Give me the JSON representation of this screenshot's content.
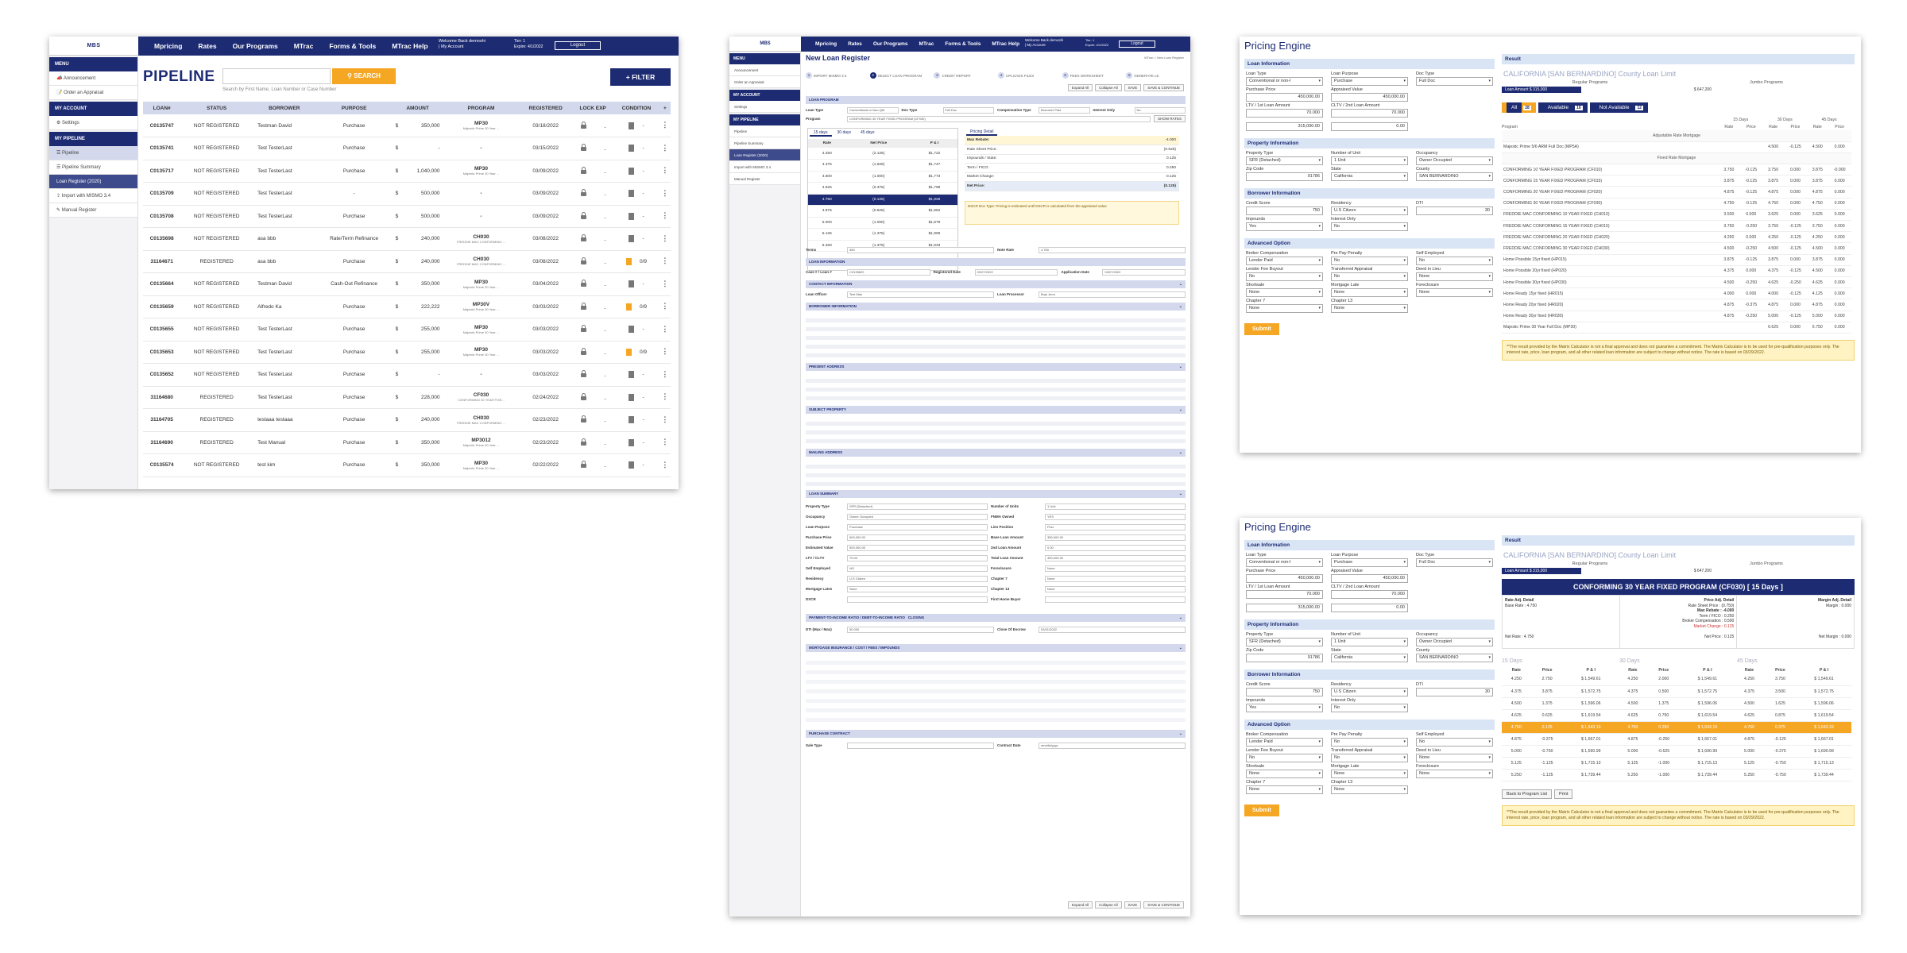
{
  "nav": {
    "logo": "MBS",
    "logo_sub": "Prestige Mortgage Bankers",
    "items": [
      "Mpricing",
      "Rates",
      "Our Programs",
      "MTrac",
      "Forms & Tools",
      "MTrac Help"
    ],
    "welcome": "Welcome Back demoshi",
    "my_account": "| My Account",
    "tier": "Tier: 1",
    "expire": "Expire: 4/1/2022",
    "logout": "Logout"
  },
  "sidebar": {
    "menu": "MENU",
    "announcement": "Announcement",
    "order_appraisal": "Order an Appraisal",
    "my_account": "MY ACCOUNT",
    "settings": "Settings",
    "my_pipeline": "MY PIPELINE",
    "pipeline": "Pipeline",
    "pipeline_summary": "Pipeline Summary",
    "loan_register": "Loan Register (2020)",
    "import": "Import with MISMO 3.4",
    "manual_register": "Manual Register"
  },
  "pipeline": {
    "title": "PIPELINE",
    "search_button": "SEARCH",
    "search_hint": "Search by First Name, Loan Number or Case Number",
    "filter_button": "FILTER",
    "columns": [
      "LOAN#",
      "STATUS",
      "BORROWER",
      "PURPOSE",
      "AMOUNT",
      "PROGRAM",
      "REGISTERED",
      "LOCK EXP",
      "CONDITION",
      "+"
    ],
    "rows": [
      {
        "loan": "C0135747",
        "status": "NOT REGISTERED",
        "borrower": "Testman David",
        "purpose": "Purchase",
        "cur": "$",
        "amount": "350,000",
        "program": "MP30",
        "sub": "Majestic Prime 30 Year ...",
        "registered": "03/18/2022",
        "lockexp": "-",
        "cond": "-"
      },
      {
        "loan": "C0135741",
        "status": "NOT REGISTERED",
        "borrower": "Test TesterLast",
        "purpose": "Purchase",
        "cur": "$",
        "amount": "-",
        "program": "-",
        "sub": "",
        "registered": "03/15/2022",
        "lockexp": "-",
        "cond": "-"
      },
      {
        "loan": "C0135717",
        "status": "NOT REGISTERED",
        "borrower": "Test TesterLast",
        "purpose": "Purchase",
        "cur": "$",
        "amount": "1,040,000",
        "program": "MP30",
        "sub": "Majestic Prime 30 Year ...",
        "registered": "03/09/2022",
        "lockexp": "-",
        "cond": "-"
      },
      {
        "loan": "C0135709",
        "status": "NOT REGISTERED",
        "borrower": "Test TesterLast",
        "purpose": "-",
        "cur": "$",
        "amount": "500,000",
        "program": "-",
        "sub": "",
        "registered": "03/09/2022",
        "lockexp": "-",
        "cond": "-"
      },
      {
        "loan": "C0135708",
        "status": "NOT REGISTERED",
        "borrower": "Test TesterLast",
        "purpose": "Purchase",
        "cur": "$",
        "amount": "500,000",
        "program": "-",
        "sub": "",
        "registered": "03/09/2022",
        "lockexp": "-",
        "cond": "-"
      },
      {
        "loan": "C0135698",
        "status": "NOT REGISTERED",
        "borrower": "asa bbb",
        "purpose": "Rate/Term Refinance",
        "cur": "$",
        "amount": "240,000",
        "program": "CH030",
        "sub": "FREDDIE MAC CONFORMING ...",
        "registered": "03/08/2022",
        "lockexp": "-",
        "cond": "-"
      },
      {
        "loan": "31164671",
        "status": "REGISTERED",
        "borrower": "asa bbb",
        "purpose": "Purchase",
        "cur": "$",
        "amount": "240,000",
        "program": "CH030",
        "sub": "FREDDIE MAC CONFORMING ...",
        "registered": "03/08/2022",
        "lockexp": "-",
        "cond": "0/9"
      },
      {
        "loan": "C0135664",
        "status": "NOT REGISTERED",
        "borrower": "Testman David",
        "purpose": "Cash-Out Refinance",
        "cur": "$",
        "amount": "350,000",
        "program": "MP30",
        "sub": "Majestic Prime 30 Year ...",
        "registered": "03/04/2022",
        "lockexp": "-",
        "cond": "-"
      },
      {
        "loan": "C0135659",
        "status": "NOT REGISTERED",
        "borrower": "Alfredo Ka",
        "purpose": "Purchase",
        "cur": "$",
        "amount": "222,222",
        "program": "MP30V",
        "sub": "Majestic Prime 30 Year ...",
        "registered": "03/03/2022",
        "lockexp": "-",
        "cond": "0/9"
      },
      {
        "loan": "C0135655",
        "status": "NOT REGISTERED",
        "borrower": "Test TesterLast",
        "purpose": "Purchase",
        "cur": "$",
        "amount": "255,000",
        "program": "MP30",
        "sub": "Majestic Prime 30 Year ...",
        "registered": "03/03/2022",
        "lockexp": "-",
        "cond": "-"
      },
      {
        "loan": "C0135653",
        "status": "NOT REGISTERED",
        "borrower": "Test TesterLast",
        "purpose": "Purchase",
        "cur": "$",
        "amount": "255,000",
        "program": "MP30",
        "sub": "Majestic Prime 30 Year ...",
        "registered": "03/03/2022",
        "lockexp": "-",
        "cond": "0/9"
      },
      {
        "loan": "C0135652",
        "status": "NOT REGISTERED",
        "borrower": "Test TesterLast",
        "purpose": "Purchase",
        "cur": "$",
        "amount": "-",
        "program": "-",
        "sub": "",
        "registered": "03/03/2022",
        "lockexp": "-",
        "cond": "-"
      },
      {
        "loan": "31164680",
        "status": "REGISTERED",
        "borrower": "Test TesterLast",
        "purpose": "Purchase",
        "cur": "$",
        "amount": "228,000",
        "program": "CF030",
        "sub": "CONFORMING 30 YEAR FIXE...",
        "registered": "02/24/2022",
        "lockexp": "-",
        "cond": "-"
      },
      {
        "loan": "31164705",
        "status": "REGISTERED",
        "borrower": "testaaa testaaa",
        "purpose": "Purchase",
        "cur": "$",
        "amount": "240,000",
        "program": "CH030",
        "sub": "FREDDIE MAC CONFORMING ...",
        "registered": "02/23/2022",
        "lockexp": "-",
        "cond": "-"
      },
      {
        "loan": "31164690",
        "status": "REGISTERED",
        "borrower": "Test Manual",
        "purpose": "Purchase",
        "cur": "$",
        "amount": "350,000",
        "program": "MP3012",
        "sub": "Majestic Prime 30 Year ...",
        "registered": "02/23/2022",
        "lockexp": "-",
        "cond": "-"
      },
      {
        "loan": "C0135574",
        "status": "NOT REGISTERED",
        "borrower": "test kim",
        "purpose": "Purchase",
        "cur": "$",
        "amount": "350,000",
        "program": "MP30",
        "sub": "Majestic Prime 30 Year ...",
        "registered": "02/22/2022",
        "lockexp": "-",
        "cond": "-"
      }
    ]
  },
  "loan_register": {
    "title": "New Loan Register",
    "breadcrumb": "MTrac > New Loan Register",
    "steps": [
      "IMPORT MISMO 3.4",
      "SELECT LOAN PROGRAM",
      "CREDIT REPORT",
      "UPLOADS FILES",
      "FEES WORKSHEET",
      "GENERATE LE"
    ],
    "toolbar": [
      "Expand All",
      "Collapse All",
      "SAVE",
      "SAVE & CONTINUE"
    ],
    "sections": [
      "LOAN PROGRAM",
      "LOAN INFORMATION",
      "CONTACT INFORMATION",
      "BORROWER INFORMATION",
      "PRESENT ADDRESS",
      "SUBJECT PROPERTY",
      "MAILING ADDRESS",
      "LOAN SUMMARY",
      "PAYMENT-TO-INCOME RATIO / DEBT-TO-INCOME RATIO",
      "CLOSING",
      "MORTGAGE INSURANCE / COST / FEES / IMPOUNDS",
      "PURCHASE CONTRACT"
    ],
    "loan_type_label": "Loan Type",
    "loan_type": "Conventional or Non-QM",
    "doc_type_label": "Doc Type",
    "doc_type": "Full Doc",
    "comp_label": "Compensation Type",
    "comp": "Borrower Paid",
    "io_label": "Interest Only",
    "io": "No",
    "program_label": "Program",
    "program": "CONFORMING 30 YEAR FIXED PROGRAM (CF030)",
    "show_rates": "SHOW RATES",
    "rate_tabs": [
      "15 days",
      "30 days",
      "45 days"
    ],
    "rate_cols": [
      "Rate",
      "Net Price",
      "P & I"
    ],
    "rates": [
      [
        "4.250",
        "(2.125)",
        "$1,722"
      ],
      [
        "4.375",
        "(1.625)",
        "$1,747"
      ],
      [
        "4.500",
        "(1.000)",
        "$1,773"
      ],
      [
        "4.625",
        "(0.375)",
        "$1,799"
      ],
      [
        "4.750",
        "(0.125)",
        "$1,826"
      ],
      [
        "4.875",
        "(0.625)",
        "$1,852"
      ],
      [
        "5.000",
        "(1.000)",
        "$1,879"
      ],
      [
        "5.125",
        "(1.375)",
        "$1,906"
      ],
      [
        "5.250",
        "(1.375)",
        "$1,933"
      ]
    ],
    "pricing_tab": "Pricing Detail",
    "details": [
      [
        "Max Rebate:",
        "-4.000"
      ],
      [
        "Rate Sheet Price:",
        "(0.625)"
      ],
      [
        "Impounds / State:",
        "0.125"
      ],
      [
        "Term / FICO:",
        "0.250"
      ],
      [
        "Market Change:",
        "0.125"
      ],
      [
        "Net Price:",
        "(0.125)"
      ]
    ],
    "dscr": "DSCR Doc Type: Pricing is estimated until DSCR is calculated from the appraised value",
    "terms_label": "Terms",
    "terms": "360",
    "note_rate_label": "Note Rate",
    "note_rate": "4.750",
    "loan_info": [
      [
        "Case # / Loan #",
        "C0135822"
      ],
      [
        "Registered Date",
        "03/27/2022"
      ],
      [
        "Application Date",
        "03/27/2022"
      ]
    ],
    "loan_officer": "Loan Officer",
    "loan_officer_val": "Test Man",
    "loan_processor": "Loan Processor",
    "loan_processor_val": "Bujo Jeon",
    "summary_rows": [
      [
        "Property Type",
        "SFR (Detached)",
        "Number of Units",
        "1 Unit"
      ],
      [
        "Occupancy",
        "Owner Occupied",
        "FNMA Owned",
        "YES"
      ],
      [
        "Loan Purpose",
        "Purchase",
        "Lien Position",
        "First"
      ],
      [
        "Purchase Price",
        "500,000.00",
        "Base Loan Amount",
        "350,000.00"
      ],
      [
        "Estimated Value",
        "500,000.00",
        "2nd Loan Amount",
        "0.00"
      ],
      [
        "LTV / CLTV",
        "70.00",
        "Total Loan Amount",
        "350,000.00"
      ],
      [
        "Self Employed",
        "NO",
        "Foreclosure",
        "None"
      ],
      [
        "Residency",
        "U.S Citizen",
        "Chapter 7",
        "None"
      ],
      [
        "Mortgage Lates",
        "None",
        "Chapter 13",
        "None"
      ],
      [
        "DSCR",
        "",
        "First Home Buyer",
        ""
      ]
    ],
    "dti_label": "DTI (Max / Max)",
    "dti": "50.000",
    "close_escrow_label": "Close Of Escrow",
    "close_escrow": "03/31/2022",
    "sale_type_label": "Sale Type",
    "contract_label": "Contract Date",
    "contract": "mm/dd/yyyy"
  },
  "pricing": {
    "title": "Pricing Engine",
    "loan_info": "Loan Information",
    "loan_type_label": "Loan Type",
    "loan_type": "Conventional or non-I",
    "loan_purpose_label": "Loan Purpose",
    "loan_purpose": "Purchase",
    "doc_type_label": "Doc Type",
    "doc_type": "Full Doc",
    "purchase_label": "Purchase Price",
    "purchase": "450,000.00",
    "appraised_label": "Appraised Value",
    "appraised": "450,000.00",
    "ltv_label": "LTV / 1st Loan Amount",
    "ltv": "70.000",
    "first_amount": "315,000.00",
    "cltv_label": "CLTV / 2nd Loan Amount",
    "cltv": "70.000",
    "second_amount": "0.00",
    "property_info": "Property Information",
    "prop_type_label": "Property Type",
    "prop_type": "SFR (Detached)",
    "units_label": "Number of Unit",
    "units": "1 Unit",
    "occupancy_label": "Occupancy",
    "occupancy": "Owner Occupied",
    "zip_label": "Zip Code",
    "zip": "91786",
    "state_label": "State",
    "state": "California",
    "county_label": "County",
    "county": "SAN BERNARDINO",
    "borrower_info": "Borrower Information",
    "credit_label": "Credit Score",
    "credit": "750",
    "residency_label": "Residency",
    "residency": "U.S Citizen",
    "dti_label": "DTI",
    "dti": "30",
    "impounds_label": "Impounds",
    "impounds": "Yes",
    "io_label": "Interest Only",
    "io": "No",
    "advanced": "Advanced Option",
    "broker_label": "Broker Compensation",
    "broker": "Lender Paid",
    "prepay_label": "Pre Pay Penalty",
    "prepay": "No",
    "self_label": "Self Employed",
    "self": "No",
    "lfb_label": "Lender Fee Buyout",
    "lfb": "No",
    "transf_label": "Transferred Appraisal",
    "transf": "No",
    "deed_label": "Deed in Lieu",
    "deed": "None",
    "short_label": "Shortsale",
    "short": "None",
    "late_label": "Mortgage Late",
    "late": "None",
    "fore_label": "Foreclosure",
    "fore": "None",
    "ch7_label": "Chapter 7",
    "ch7": "None",
    "ch13_label": "Chapter 13",
    "ch13": "None",
    "submit": "Submit",
    "result": "Result",
    "county_limit": "CALIFORNIA [SAN BERNARDINO] County Loan Limit",
    "regular": "Regular Programs",
    "jumbo": "Jumbo Programs",
    "loan_amount": "Loan Amount $ 315,000",
    "limit": "$ 647,200",
    "filters": [
      {
        "label": "All",
        "n": "28"
      },
      {
        "label": "Available",
        "n": "16"
      },
      {
        "label": "Not Available",
        "n": "12"
      }
    ],
    "days": [
      "15 Days",
      "30 Days",
      "45 Days"
    ],
    "price_cols": [
      "Program",
      "Rate",
      "Price",
      "Rate",
      "Price",
      "Rate",
      "Price"
    ],
    "groups": {
      "arm": "Adjustable Rate Mortgage",
      "fixed": "Fixed Rate Mortgage"
    },
    "arm_rows": [
      [
        "Majestic Prime 5/6 ARM Full Doc (MP5A)",
        "",
        "",
        "4.500",
        "-0.125",
        "4.500",
        "0.000"
      ]
    ],
    "fixed_rows": [
      [
        "CONFORMING 10 YEAR FIXED PROGRAM (CF010)",
        "3.750",
        "-0.125",
        "3.750",
        "0.000",
        "3.875",
        "-0.000"
      ],
      [
        "CONFORMING 15 YEAR FIXED PROGRAM (CF015)",
        "3.875",
        "-0.125",
        "3.875",
        "0.000",
        "3.875",
        "0.000"
      ],
      [
        "CONFORMING 20 YEAR FIXED PROGRAM (CF020)",
        "4.875",
        "-0.125",
        "4.875",
        "0.000",
        "4.875",
        "0.000"
      ],
      [
        "CONFORMING 30 YEAR FIXED PROGRAM (CF030)",
        "4.750",
        "-0.125",
        "4.750",
        "0.000",
        "4.750",
        "0.000"
      ],
      [
        "FREDDIE MAC CONFORMING 10 YEAR FIXED (CH010)",
        "3.500",
        "0.000",
        "3.625",
        "0.000",
        "3.625",
        "0.000"
      ],
      [
        "FREDDIE MAC CONFORMING 15 YEAR FIXED (CH015)",
        "3.750",
        "-0.250",
        "3.750",
        "-0.125",
        "3.750",
        "0.000"
      ],
      [
        "FREDDIE MAC CONFORMING 20 YEAR FIXED (CH020)",
        "4.250",
        "0.000",
        "4.250",
        "-0.125",
        "4.250",
        "0.000"
      ],
      [
        "FREDDIE MAC CONFORMING 30 YEAR FIXED (CH030)",
        "4.500",
        "-0.250",
        "4.500",
        "-0.125",
        "4.500",
        "0.000"
      ],
      [
        "Home Possible 15yr fixed (HP015)",
        "3.875",
        "-0.125",
        "3.875",
        "0.000",
        "3.875",
        "0.000"
      ],
      [
        "Home Possible 20yr fixed (HP020)",
        "4.375",
        "0.000",
        "4.375",
        "-0.125",
        "4.500",
        "0.000"
      ],
      [
        "Home Possible 30yr fixed (HP030)",
        "4.500",
        "-0.250",
        "4.625",
        "-0.250",
        "4.625",
        "0.000"
      ],
      [
        "Home Ready 15yr fixed (HR015)",
        "4.000",
        "0.000",
        "4.000",
        "-0.125",
        "4.125",
        "0.000"
      ],
      [
        "Home Ready 20yr fixed (HR020)",
        "4.875",
        "-0.375",
        "4.875",
        "0.000",
        "4.875",
        "0.000"
      ],
      [
        "Home Ready 30yr fixed (HR030)",
        "4.875",
        "-0.250",
        "5.000",
        "-0.125",
        "5.000",
        "0.000"
      ],
      [
        "Majestic Prime 30 Year Full Doc (MP30)",
        "",
        "",
        "6.625",
        "0.000",
        "6.750",
        "0.000"
      ]
    ],
    "disclaimer": "**The result provided by the Matrix Calculator is not a final approval and does not guarantee a commitment. The Matrix Calculator is to be used for pre-qualification purposes only. The interest rate, price, loan program, and all other related loan information are subject to change without notice. The rate is based on 03/29/2022.",
    "detail_title": "CONFORMING 30 YEAR FIXED PROGRAM (CF030) [ 15 Days ]",
    "rate_adj": "Rate Adj. Detail",
    "price_adj": "Price Adj. Detail",
    "margin_adj": "Margin Adj. Detail",
    "base_rate": "Base Rate : 4.750",
    "rate_sheet": "Rate Sheet Price : (0.750)",
    "max_rebate": "Max Rebate : -4.000",
    "term_fico": "Term / FICO : 0.250",
    "broker_comp": "Broker Compensation : 0.500",
    "market_change": "Market Change : 0.125",
    "margin": "Margin : 0.000",
    "net_rate": "Net Rate : 4.750",
    "net_price": "Net Price : 0.125",
    "net_margin": "Net Margin : 0.000",
    "pp_cols": [
      "Rate",
      "Price",
      "P & I",
      "Rate",
      "Price",
      "P & I",
      "Rate",
      "Price",
      "P & I"
    ],
    "pp_rows": [
      [
        "4.250",
        "2.750",
        "$ 1,549.61",
        "4.250",
        "2.000",
        "$ 1,549.61",
        "4.250",
        "3.750",
        "$ 1,549.61"
      ],
      [
        "4.375",
        "3.875",
        "$ 1,572.75",
        "4.375",
        "0.500",
        "$ 1,572.75",
        "4.375",
        "3.500",
        "$ 1,572.75"
      ],
      [
        "4.500",
        "1.375",
        "$ 1,596.06",
        "4.500",
        "1.375",
        "$ 1,596.06",
        "4.500",
        "1.625",
        "$ 1,596.06"
      ],
      [
        "4.625",
        "0.625",
        "$ 1,619.54",
        "4.625",
        "0.750",
        "$ 1,619.54",
        "4.625",
        "0.875",
        "$ 1,619.54"
      ],
      [
        "4.750",
        "0.125",
        "$ 1,643.19",
        "4.750",
        "0.250",
        "$ 1,643.19",
        "4.750",
        "0.375",
        "$ 1,643.19"
      ],
      [
        "4.875",
        "-0.375",
        "$ 1,667.01",
        "4.875",
        "-0.250",
        "$ 1,667.01",
        "4.875",
        "-0.125",
        "$ 1,667.01"
      ],
      [
        "5.000",
        "-0.750",
        "$ 1,690.99",
        "5.000",
        "-0.625",
        "$ 1,690.99",
        "5.000",
        "-0.375",
        "$ 1,690.99"
      ],
      [
        "5.125",
        "-1.125",
        "$ 1,715.13",
        "5.125",
        "-1.000",
        "$ 1,715.13",
        "5.125",
        "-0.750",
        "$ 1,715.13"
      ],
      [
        "5.250",
        "-1.125",
        "$ 1,739.44",
        "5.250",
        "-1.000",
        "$ 1,739.44",
        "5.250",
        "-0.750",
        "$ 1,739.44"
      ]
    ],
    "back": "Back to Program List",
    "print": "Print",
    "disclaimer2": "**The result provided by the Matrix Calculator is not a final approval and does not guarantee a commitment. The Matrix Calculator is to be used for pre-qualification purposes only. The interest rate, price, loan program, and all other related loan information are subject to change without notice. The rate is based on 03/29/2022."
  }
}
